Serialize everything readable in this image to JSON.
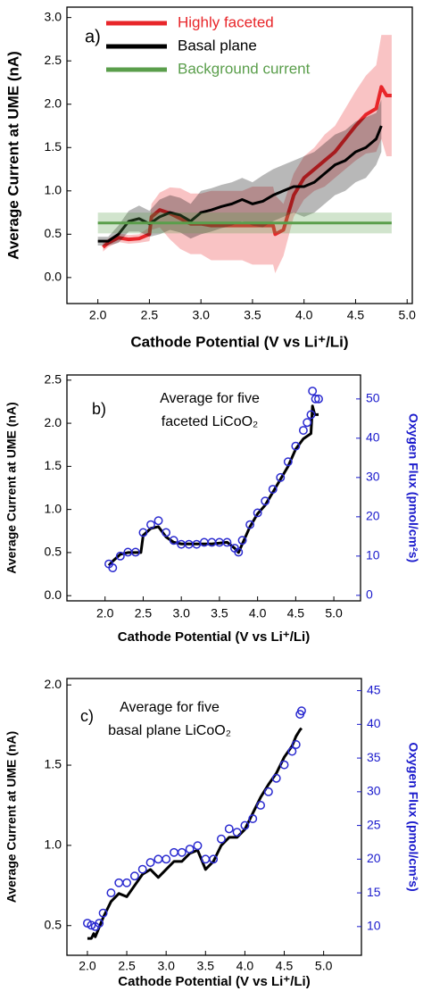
{
  "chart_data": [
    {
      "type": "line",
      "legend": "upper left",
      "xlabel": "Cathode Potential (V vs Li⁺/Li)",
      "ylabel": "Average Current at UME (nA)",
      "annotations": [
        "a)"
      ],
      "xlim": [
        1.7,
        5.05
      ],
      "ylim": [
        -0.3,
        3.12
      ],
      "xticks": [
        {
          "value": 2,
          "label": "2.0"
        },
        2.5,
        {
          "value": 3,
          "label": "3.0"
        },
        3.5,
        {
          "value": 4,
          "label": "4.0"
        },
        4.5,
        {
          "value": 5,
          "label": "5.0"
        }
      ],
      "yticks": [
        {
          "value": 0,
          "label": "0.0"
        },
        0.5,
        {
          "value": 1,
          "label": "1.0"
        },
        1.5,
        {
          "value": 2,
          "label": "2.0"
        },
        2.5,
        {
          "value": 3,
          "label": "3.0"
        }
      ],
      "series": [
        {
          "name": "Highly faceted",
          "color": "#e8262a",
          "x": [
            2.05,
            2.1,
            2.2,
            2.3,
            2.4,
            2.5,
            2.52,
            2.6,
            2.7,
            2.8,
            2.9,
            3.0,
            3.1,
            3.2,
            3.3,
            3.4,
            3.5,
            3.6,
            3.7,
            3.72,
            3.8,
            3.9,
            4.0,
            4.1,
            4.2,
            4.3,
            4.4,
            4.5,
            4.6,
            4.7,
            4.75,
            4.8,
            4.85
          ],
          "values": [
            0.35,
            0.4,
            0.46,
            0.44,
            0.45,
            0.5,
            0.7,
            0.78,
            0.74,
            0.68,
            0.62,
            0.62,
            0.6,
            0.6,
            0.6,
            0.6,
            0.6,
            0.6,
            0.6,
            0.5,
            0.55,
            0.95,
            1.15,
            1.25,
            1.35,
            1.45,
            1.6,
            1.75,
            1.88,
            1.95,
            2.2,
            2.1,
            2.1
          ],
          "errors": [
            0.05,
            0.05,
            0.05,
            0.05,
            0.05,
            0.08,
            0.15,
            0.2,
            0.3,
            0.35,
            0.35,
            0.35,
            0.4,
            0.4,
            0.4,
            0.4,
            0.45,
            0.45,
            0.45,
            0.45,
            0.3,
            0.25,
            0.25,
            0.25,
            0.3,
            0.3,
            0.35,
            0.4,
            0.45,
            0.5,
            0.6,
            0.7,
            0.7
          ]
        },
        {
          "name": "Basal plane",
          "color": "#000000",
          "x": [
            2.0,
            2.1,
            2.2,
            2.3,
            2.4,
            2.5,
            2.6,
            2.7,
            2.8,
            2.9,
            3.0,
            3.1,
            3.2,
            3.3,
            3.4,
            3.5,
            3.6,
            3.7,
            3.8,
            3.9,
            4.0,
            4.1,
            4.2,
            4.3,
            4.4,
            4.5,
            4.6,
            4.7,
            4.75
          ],
          "values": [
            0.42,
            0.42,
            0.5,
            0.65,
            0.68,
            0.62,
            0.7,
            0.75,
            0.72,
            0.65,
            0.75,
            0.78,
            0.82,
            0.85,
            0.9,
            0.85,
            0.88,
            0.95,
            1.0,
            1.05,
            1.05,
            1.1,
            1.2,
            1.3,
            1.35,
            1.45,
            1.5,
            1.6,
            1.75
          ],
          "errors": [
            0.05,
            0.05,
            0.1,
            0.12,
            0.15,
            0.15,
            0.2,
            0.2,
            0.2,
            0.2,
            0.25,
            0.25,
            0.25,
            0.25,
            0.25,
            0.25,
            0.3,
            0.3,
            0.3,
            0.3,
            0.35,
            0.35,
            0.35,
            0.35,
            0.35,
            0.35,
            0.35,
            0.3,
            0.3
          ]
        },
        {
          "name": "Background current",
          "color": "#5a9e4b",
          "x": [
            2.0,
            4.85
          ],
          "values": [
            0.63,
            0.63
          ],
          "errors": [
            0.12,
            0.12
          ]
        }
      ]
    },
    {
      "type": "line",
      "xlabel": "Cathode Potential (V vs Li⁺/Li)",
      "ylabel": "Average Current at UME (nA)",
      "y2label": "Oxygen Flux (pmol/cm²s)",
      "y2_color": "#1a1acc",
      "annotations": [
        "b)",
        "Average for five",
        "faceted LiCoO₂"
      ],
      "xlim": [
        1.5,
        5.35
      ],
      "ylim": [
        -0.06,
        2.56
      ],
      "y2lim": [
        -1.4,
        56.1
      ],
      "xticks": [
        {
          "value": 2,
          "label": "2.0"
        },
        2.5,
        {
          "value": 3,
          "label": "3.0"
        },
        3.5,
        {
          "value": 4,
          "label": "4.0"
        },
        4.5,
        {
          "value": 5,
          "label": "5.0"
        }
      ],
      "yticks": [
        {
          "value": 0,
          "label": "0.0"
        },
        0.5,
        {
          "value": 1,
          "label": "1.0"
        },
        1.5,
        {
          "value": 2,
          "label": "2.0"
        },
        2.5
      ],
      "y2ticks": [
        0,
        10,
        20,
        30,
        40,
        50
      ],
      "series": [
        {
          "color": "#000000",
          "x": [
            2.05,
            2.1,
            2.2,
            2.3,
            2.4,
            2.47,
            2.5,
            2.6,
            2.7,
            2.8,
            2.9,
            3.0,
            3.2,
            3.4,
            3.6,
            3.7,
            3.75,
            3.8,
            3.9,
            4.0,
            4.1,
            4.2,
            4.3,
            4.4,
            4.5,
            4.6,
            4.7,
            4.72,
            4.75,
            4.8
          ],
          "values": [
            0.35,
            0.4,
            0.48,
            0.5,
            0.5,
            0.5,
            0.7,
            0.78,
            0.8,
            0.68,
            0.62,
            0.6,
            0.6,
            0.6,
            0.62,
            0.55,
            0.5,
            0.6,
            0.8,
            0.95,
            1.05,
            1.2,
            1.35,
            1.5,
            1.7,
            1.82,
            1.88,
            2.2,
            2.1,
            2.1
          ]
        },
        {
          "type": "scatter",
          "axis": "y2",
          "color": "#2a2ad0",
          "x": [
            2.05,
            2.1,
            2.2,
            2.3,
            2.4,
            2.5,
            2.6,
            2.7,
            2.8,
            2.9,
            3.0,
            3.1,
            3.2,
            3.3,
            3.4,
            3.5,
            3.6,
            3.7,
            3.75,
            3.8,
            3.9,
            4.0,
            4.1,
            4.2,
            4.3,
            4.4,
            4.5,
            4.6,
            4.65,
            4.7,
            4.72,
            4.76,
            4.8
          ],
          "values": [
            8,
            7,
            10,
            11,
            11,
            16,
            18,
            19,
            16,
            14,
            13,
            13,
            13,
            13.5,
            13.5,
            13.5,
            13.5,
            12,
            11,
            14,
            18,
            21,
            24,
            27,
            30,
            34,
            38,
            42,
            44,
            46,
            52,
            50,
            50
          ]
        }
      ]
    },
    {
      "type": "line",
      "xlabel": "Cathode Potential (V vs Li⁺/Li)",
      "ylabel": "Average Current at UME (nA)",
      "y2label": "Oxygen Flux (pmol/cm²s)",
      "y2_color": "#1a1acc",
      "annotations": [
        "c)",
        "Average for five",
        "basal plane LiCoO₂"
      ],
      "xlim": [
        1.74,
        5.48
      ],
      "ylim": [
        0.315,
        2.04
      ],
      "y2lim": [
        5.74,
        46.8
      ],
      "xticks": [
        {
          "value": 2,
          "label": "2.0"
        },
        2.5,
        {
          "value": 3,
          "label": "3.0"
        },
        3.5,
        {
          "value": 4,
          "label": "4.0"
        },
        4.5,
        {
          "value": 5,
          "label": "5.0"
        }
      ],
      "yticks": [
        0.5,
        {
          "value": 1,
          "label": "1.0"
        },
        1.5,
        {
          "value": 2,
          "label": "2.0"
        }
      ],
      "y2ticks": [
        10,
        15,
        20,
        25,
        30,
        35,
        40,
        45
      ],
      "series": [
        {
          "color": "#000000",
          "x": [
            2.0,
            2.05,
            2.08,
            2.1,
            2.2,
            2.3,
            2.4,
            2.5,
            2.6,
            2.7,
            2.8,
            2.9,
            3.0,
            3.1,
            3.2,
            3.3,
            3.4,
            3.5,
            3.6,
            3.7,
            3.8,
            3.9,
            4.0,
            4.1,
            4.2,
            4.3,
            4.4,
            4.5,
            4.6,
            4.65,
            4.7,
            4.72
          ],
          "values": [
            0.42,
            0.42,
            0.45,
            0.43,
            0.55,
            0.65,
            0.7,
            0.68,
            0.75,
            0.82,
            0.85,
            0.8,
            0.85,
            0.9,
            0.9,
            0.95,
            0.97,
            0.85,
            0.9,
            1.0,
            1.05,
            1.05,
            1.1,
            1.2,
            1.3,
            1.38,
            1.45,
            1.55,
            1.62,
            1.68,
            1.72,
            1.73
          ]
        },
        {
          "type": "scatter",
          "axis": "y2",
          "color": "#2a2ad0",
          "x": [
            2.0,
            2.05,
            2.1,
            2.15,
            2.2,
            2.3,
            2.4,
            2.5,
            2.6,
            2.7,
            2.8,
            2.9,
            3.0,
            3.1,
            3.2,
            3.3,
            3.4,
            3.5,
            3.6,
            3.7,
            3.8,
            3.9,
            4.0,
            4.1,
            4.2,
            4.3,
            4.4,
            4.5,
            4.6,
            4.65,
            4.7,
            4.72
          ],
          "values": [
            10.5,
            10.2,
            10,
            10.5,
            12,
            15,
            16.5,
            16.5,
            17.5,
            18.5,
            19.5,
            20,
            20,
            21,
            21,
            21.5,
            22,
            20,
            20,
            23,
            24.5,
            24,
            25,
            26,
            28,
            30,
            32,
            34,
            36,
            37,
            41.5,
            42
          ]
        }
      ]
    }
  ]
}
